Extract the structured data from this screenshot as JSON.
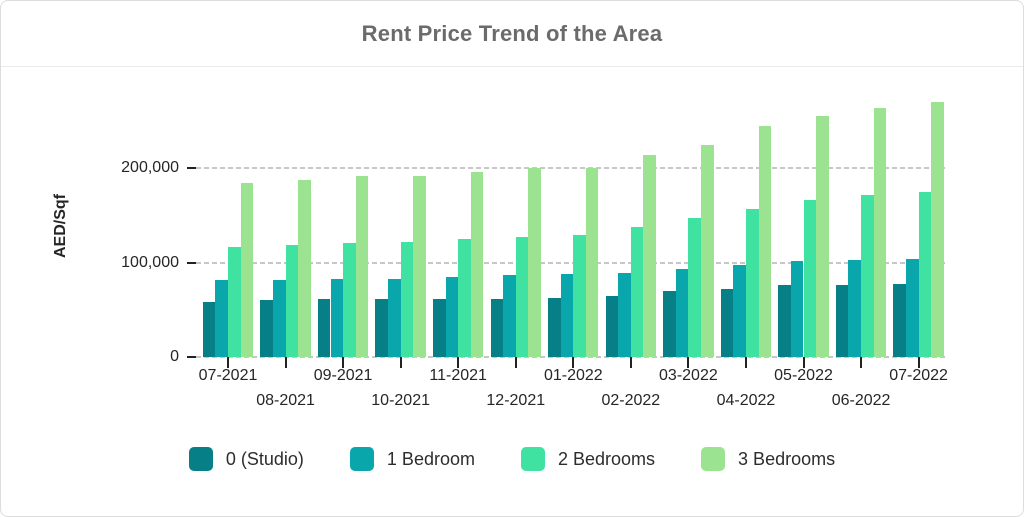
{
  "header": {
    "title": "Rent Price Trend of the Area"
  },
  "chart_data": {
    "type": "bar",
    "title": "Rent Price Trend of the Area",
    "xlabel": "",
    "ylabel": "AED/Sqf",
    "ylim": [
      0,
      280000
    ],
    "grid": "horizontal-dashed",
    "gridline_color": "#c7c7c7",
    "legend_position": "bottom",
    "y_ticks": [
      {
        "value": 0,
        "label": "0"
      },
      {
        "value": 100000,
        "label": "100,000"
      },
      {
        "value": 200000,
        "label": "200,000"
      }
    ],
    "categories": [
      "07-2021",
      "08-2021",
      "09-2021",
      "10-2021",
      "11-2021",
      "12-2021",
      "01-2022",
      "02-2022",
      "03-2022",
      "04-2022",
      "05-2022",
      "06-2022",
      "07-2022"
    ],
    "series": [
      {
        "name": "0 (Studio)",
        "color": "#077f87",
        "values": [
          58000,
          60500,
          61000,
          61000,
          61000,
          61500,
          62500,
          65000,
          69500,
          71500,
          76000,
          76500,
          77500
        ]
      },
      {
        "name": "1 Bedroom",
        "color": "#09a6ac",
        "values": [
          81500,
          82000,
          83000,
          83000,
          84500,
          86500,
          88000,
          89000,
          93500,
          97500,
          101500,
          103000,
          103500
        ]
      },
      {
        "name": "2 Bedrooms",
        "color": "#3fe2a1",
        "values": [
          116500,
          119000,
          121000,
          122000,
          125000,
          127000,
          129500,
          138000,
          147000,
          157000,
          166000,
          171000,
          175000
        ]
      },
      {
        "name": "3 Bedrooms",
        "color": "#9ce391",
        "values": [
          184000,
          187500,
          191500,
          192000,
          196000,
          200000,
          199500,
          214000,
          224500,
          244000,
          254500,
          263500,
          270000
        ]
      }
    ]
  }
}
